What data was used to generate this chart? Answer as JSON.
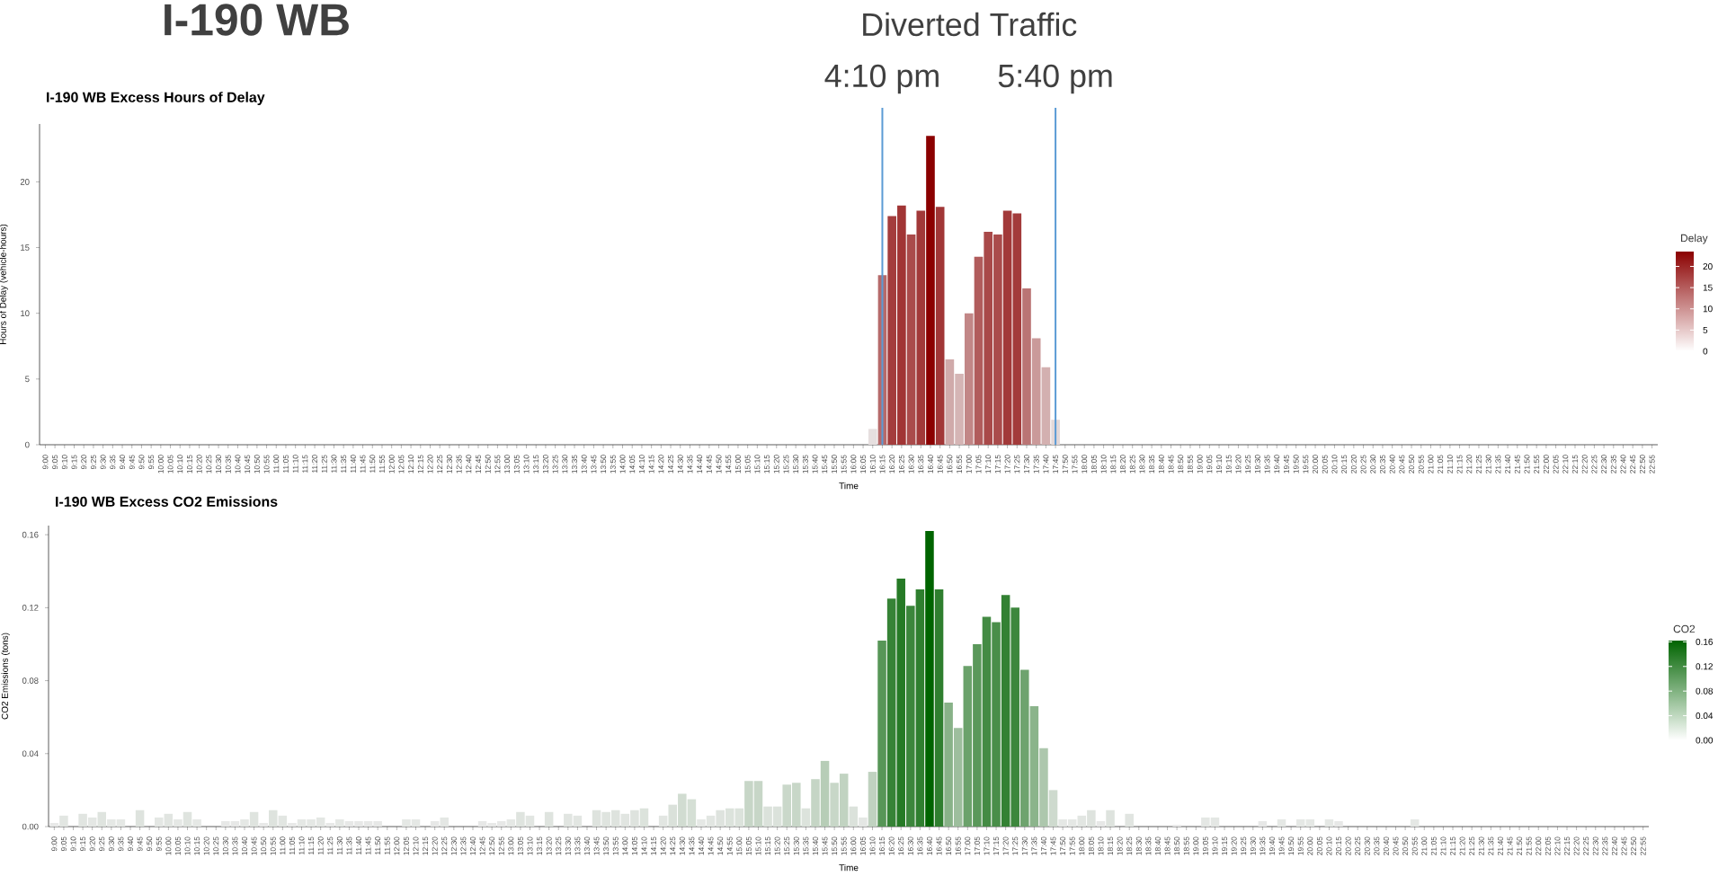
{
  "chart_data": [
    {
      "type": "bar",
      "title": "I-190 WB Excess Hours of Delay",
      "xlabel": "Time",
      "ylabel": "Hours of Delay (vehicle-hours)",
      "annotations": [
        "I-190 WB",
        "Diverted Traffic"
      ],
      "categories": [
        "9:00",
        "9:05",
        "9:10",
        "9:15",
        "9:20",
        "9:25",
        "9:30",
        "9:35",
        "9:40",
        "9:45",
        "9:50",
        "9:55",
        "10:00",
        "10:05",
        "10:10",
        "10:15",
        "10:20",
        "10:25",
        "10:30",
        "10:35",
        "10:40",
        "10:45",
        "10:50",
        "10:55",
        "11:00",
        "11:05",
        "11:10",
        "11:15",
        "11:20",
        "11:25",
        "11:30",
        "11:35",
        "11:40",
        "11:45",
        "11:50",
        "11:55",
        "12:00",
        "12:05",
        "12:10",
        "12:15",
        "12:20",
        "12:25",
        "12:30",
        "12:35",
        "12:40",
        "12:45",
        "12:50",
        "12:55",
        "13:00",
        "13:05",
        "13:10",
        "13:15",
        "13:20",
        "13:25",
        "13:30",
        "13:35",
        "13:40",
        "13:45",
        "13:50",
        "13:55",
        "14:00",
        "14:05",
        "14:10",
        "14:15",
        "14:20",
        "14:25",
        "14:30",
        "14:35",
        "14:40",
        "14:45",
        "14:50",
        "14:55",
        "15:00",
        "15:05",
        "15:10",
        "15:15",
        "15:20",
        "15:25",
        "15:30",
        "15:35",
        "15:40",
        "15:45",
        "15:50",
        "15:55",
        "16:00",
        "16:05",
        "16:10",
        "16:15",
        "16:20",
        "16:25",
        "16:30",
        "16:35",
        "16:40",
        "16:45",
        "16:50",
        "16:55",
        "17:00",
        "17:05",
        "17:10",
        "17:15",
        "17:20",
        "17:25",
        "17:30",
        "17:35",
        "17:40",
        "17:45",
        "17:50",
        "17:55",
        "18:00",
        "18:05",
        "18:10",
        "18:15",
        "18:20",
        "18:25",
        "18:30",
        "18:35",
        "18:40",
        "18:45",
        "18:50",
        "18:55",
        "19:00",
        "19:05",
        "19:10",
        "19:15",
        "19:20",
        "19:25",
        "19:30",
        "19:35",
        "19:40",
        "19:45",
        "19:50",
        "19:55",
        "20:00",
        "20:05",
        "20:10",
        "20:15",
        "20:20",
        "20:25",
        "20:30",
        "20:35",
        "20:40",
        "20:45",
        "20:50",
        "20:55",
        "21:00",
        "21:05",
        "21:10",
        "21:15",
        "21:20",
        "21:25",
        "21:30",
        "21:35",
        "21:40",
        "21:45",
        "21:50",
        "21:55",
        "22:00",
        "22:05",
        "22:10",
        "22:15",
        "22:20",
        "22:25",
        "22:30",
        "22:35",
        "22:40",
        "22:45",
        "22:50",
        "22:55"
      ],
      "values": [
        0,
        0,
        0,
        0,
        0,
        0,
        0,
        0,
        0,
        0,
        0,
        0,
        0,
        0,
        0,
        0,
        0,
        0,
        0,
        0,
        0,
        0,
        0,
        0,
        0,
        0,
        0,
        0,
        0,
        0,
        0,
        0,
        0,
        0,
        0,
        0,
        0,
        0,
        0,
        0,
        0,
        0,
        0,
        0,
        0,
        0,
        0,
        0,
        0,
        0,
        0,
        0,
        0,
        0,
        0,
        0,
        0,
        0,
        0,
        0,
        0,
        0,
        0,
        0,
        0,
        0,
        0,
        0,
        0,
        0,
        0,
        0,
        0,
        0,
        0,
        0,
        0,
        0,
        0,
        0,
        0,
        0,
        0,
        0,
        0,
        0,
        1.2,
        12.9,
        17.4,
        18.2,
        16.0,
        17.8,
        23.5,
        18.1,
        6.5,
        5.4,
        10.0,
        14.3,
        16.2,
        16.0,
        17.8,
        17.6,
        11.9,
        8.1,
        5.9,
        1.9,
        0,
        0,
        0,
        0,
        0,
        0,
        0,
        0,
        0,
        0,
        0,
        0,
        0,
        0,
        0,
        0,
        0,
        0,
        0,
        0,
        0,
        0,
        0,
        0,
        0,
        0,
        0,
        0,
        0,
        0,
        0,
        0,
        0,
        0,
        0,
        0,
        0,
        0,
        0,
        0,
        0,
        0,
        0,
        0,
        0,
        0,
        0,
        0,
        0,
        0,
        0,
        0,
        0,
        0,
        0,
        0,
        0,
        0,
        0,
        0,
        0,
        0
      ],
      "colors": [
        "#ebebeb",
        "#ebebeb",
        "#ebebeb",
        "#ebebeb",
        "#ebebeb",
        "#ebebeb",
        "#ebebeb",
        "#ebebeb",
        "#ebebeb",
        "#ebebeb",
        "#ebebeb",
        "#ebebeb",
        "#ebebeb",
        "#ebebeb",
        "#ebebeb",
        "#ebebeb",
        "#ebebeb",
        "#ebebeb",
        "#ebebeb",
        "#ebebeb",
        "#ebebeb",
        "#ebebeb",
        "#ebebeb",
        "#ebebeb",
        "#ebebeb",
        "#ebebeb",
        "#ebebeb",
        "#ebebeb",
        "#ebebeb",
        "#ebebeb",
        "#ebebeb",
        "#ebebeb",
        "#ebebeb",
        "#ebebeb",
        "#ebebeb",
        "#ebebeb",
        "#ebebeb",
        "#ebebeb",
        "#ebebeb",
        "#ebebeb",
        "#ebebeb",
        "#ebebeb",
        "#ebebeb",
        "#ebebeb",
        "#ebebeb",
        "#ebebeb",
        "#ebebeb",
        "#ebebeb",
        "#ebebeb",
        "#ebebeb",
        "#ebebeb",
        "#ebebeb",
        "#ebebeb",
        "#ebebeb",
        "#ebebeb",
        "#ebebeb",
        "#ebebeb",
        "#ebebeb",
        "#ebebeb",
        "#ebebeb",
        "#ebebeb",
        "#ebebeb",
        "#ebebeb",
        "#ebebeb",
        "#ebebeb",
        "#ebebeb",
        "#ebebeb",
        "#ebebeb",
        "#ebebeb",
        "#ebebeb",
        "#ebebeb",
        "#ebebeb",
        "#ebebeb",
        "#ebebeb",
        "#ebebeb",
        "#ebebeb",
        "#ebebeb",
        "#ebebeb",
        "#ebebeb",
        "#ebebeb",
        "#ebebeb",
        "#ebebeb",
        "#ebebeb",
        "#ebebeb",
        "#ebebeb",
        "#ebebeb",
        "#e6dfdf",
        "#b66a6a",
        "#a43d3d",
        "#a13535",
        "#aa4b4b",
        "#a23939",
        "#8b0000",
        "#a13636",
        "#d0aaaa",
        "#d5b5b5",
        "#c28787",
        "#b15c5c",
        "#a94949",
        "#aa4b4b",
        "#a23939",
        "#a33b3b",
        "#ba7474",
        "#ca9a9a",
        "#d3b0b0",
        "#e3d8d8",
        "#ebebeb",
        "#ebebeb",
        "#ebebeb",
        "#ebebeb",
        "#ebebeb",
        "#ebebeb",
        "#ebebeb",
        "#ebebeb",
        "#ebebeb",
        "#ebebeb",
        "#ebebeb",
        "#ebebeb",
        "#ebebeb",
        "#ebebeb",
        "#ebebeb",
        "#ebebeb",
        "#ebebeb",
        "#ebebeb",
        "#ebebeb",
        "#ebebeb",
        "#ebebeb",
        "#ebebeb",
        "#ebebeb",
        "#ebebeb",
        "#ebebeb",
        "#ebebeb",
        "#ebebeb",
        "#ebebeb",
        "#ebebeb",
        "#ebebeb",
        "#ebebeb",
        "#ebebeb",
        "#ebebeb",
        "#ebebeb",
        "#ebebeb",
        "#ebebeb",
        "#ebebeb",
        "#ebebeb",
        "#ebebeb",
        "#ebebeb",
        "#ebebeb",
        "#ebebeb",
        "#ebebeb",
        "#ebebeb",
        "#ebebeb",
        "#ebebeb",
        "#ebebeb",
        "#ebebeb",
        "#ebebeb",
        "#ebebeb",
        "#ebebeb",
        "#ebebeb",
        "#ebebeb",
        "#ebebeb",
        "#ebebeb",
        "#ebebeb",
        "#ebebeb",
        "#ebebeb",
        "#ebebeb",
        "#ebebeb",
        "#ebebeb",
        "#ebebeb"
      ],
      "ylim": [
        0,
        24.4
      ],
      "yticks": [
        0,
        5,
        10,
        15,
        20
      ],
      "clim": [
        0,
        23.5
      ],
      "cticks": [
        0,
        5,
        10,
        15,
        20
      ],
      "clabel": "Delay",
      "ref_lines": [
        {
          "axis": "x",
          "value": "16:15",
          "label": "4:10 pm",
          "color": "#5b9bd5"
        },
        {
          "axis": "x",
          "value": "17:45",
          "label": "5:40 pm",
          "color": "#5b9bd5"
        }
      ]
    },
    {
      "type": "bar",
      "title": "I-190 WB Excess CO2 Emissions",
      "xlabel": "Time",
      "ylabel": "CO2 Emissions (tons)",
      "categories": [
        "9:00",
        "9:05",
        "9:10",
        "9:15",
        "9:20",
        "9:25",
        "9:30",
        "9:35",
        "9:40",
        "9:45",
        "9:50",
        "9:55",
        "10:00",
        "10:05",
        "10:10",
        "10:15",
        "10:20",
        "10:25",
        "10:30",
        "10:35",
        "10:40",
        "10:45",
        "10:50",
        "10:55",
        "11:00",
        "11:05",
        "11:10",
        "11:15",
        "11:20",
        "11:25",
        "11:30",
        "11:35",
        "11:40",
        "11:45",
        "11:50",
        "11:55",
        "12:00",
        "12:05",
        "12:10",
        "12:15",
        "12:20",
        "12:25",
        "12:30",
        "12:35",
        "12:40",
        "12:45",
        "12:50",
        "12:55",
        "13:00",
        "13:05",
        "13:10",
        "13:15",
        "13:20",
        "13:25",
        "13:30",
        "13:35",
        "13:40",
        "13:45",
        "13:50",
        "13:55",
        "14:00",
        "14:05",
        "14:10",
        "14:15",
        "14:20",
        "14:25",
        "14:30",
        "14:35",
        "14:40",
        "14:45",
        "14:50",
        "14:55",
        "15:00",
        "15:05",
        "15:10",
        "15:15",
        "15:20",
        "15:25",
        "15:30",
        "15:35",
        "15:40",
        "15:45",
        "15:50",
        "15:55",
        "16:00",
        "16:05",
        "16:10",
        "16:15",
        "16:20",
        "16:25",
        "16:30",
        "16:35",
        "16:40",
        "16:45",
        "16:50",
        "16:55",
        "17:00",
        "17:05",
        "17:10",
        "17:15",
        "17:20",
        "17:25",
        "17:30",
        "17:35",
        "17:40",
        "17:45",
        "17:50",
        "17:55",
        "18:00",
        "18:05",
        "18:10",
        "18:15",
        "18:20",
        "18:25",
        "18:30",
        "18:35",
        "18:40",
        "18:45",
        "18:50",
        "18:55",
        "19:00",
        "19:05",
        "19:10",
        "19:15",
        "19:20",
        "19:25",
        "19:30",
        "19:35",
        "19:40",
        "19:45",
        "19:50",
        "19:55",
        "20:00",
        "20:05",
        "20:10",
        "20:15",
        "20:20",
        "20:25",
        "20:30",
        "20:35",
        "20:40",
        "20:45",
        "20:50",
        "20:55",
        "21:00",
        "21:05",
        "21:10",
        "21:15",
        "21:20",
        "21:25",
        "21:30",
        "21:35",
        "21:40",
        "21:45",
        "21:50",
        "21:55",
        "22:00",
        "22:05",
        "22:10",
        "22:15",
        "22:20",
        "22:25",
        "22:30",
        "22:35",
        "22:40",
        "22:45",
        "22:50",
        "22:55"
      ],
      "values": [
        0.002,
        0.006,
        0,
        0.007,
        0.005,
        0.008,
        0.004,
        0.004,
        0,
        0.009,
        0,
        0.005,
        0.007,
        0.004,
        0.008,
        0.004,
        0,
        0,
        0.003,
        0.003,
        0.004,
        0.008,
        0.002,
        0.009,
        0.006,
        0.002,
        0.004,
        0.004,
        0.005,
        0.002,
        0.004,
        0.003,
        0.003,
        0.003,
        0.003,
        0,
        0,
        0.004,
        0.004,
        0,
        0.003,
        0.005,
        0,
        0,
        0,
        0.003,
        0.002,
        0.003,
        0.004,
        0.008,
        0.006,
        0,
        0.008,
        0,
        0.007,
        0.006,
        0,
        0.009,
        0.008,
        0.009,
        0.007,
        0.009,
        0.01,
        0,
        0.006,
        0.012,
        0.018,
        0.015,
        0.004,
        0.006,
        0.009,
        0.01,
        0.01,
        0.025,
        0.025,
        0.011,
        0.011,
        0.023,
        0.024,
        0.01,
        0.026,
        0.036,
        0.024,
        0.029,
        0.011,
        0.005,
        0.03,
        0.102,
        0.125,
        0.136,
        0.121,
        0.13,
        0.162,
        0.13,
        0.068,
        0.054,
        0.088,
        0.1,
        0.115,
        0.112,
        0.127,
        0.12,
        0.086,
        0.066,
        0.043,
        0.02,
        0.004,
        0.004,
        0.006,
        0.009,
        0.003,
        0.009,
        0,
        0.007,
        0,
        0,
        0,
        0,
        0.001,
        0,
        0,
        0.005,
        0.005,
        0,
        0,
        0,
        0,
        0.003,
        0,
        0.004,
        0,
        0.004,
        0.004,
        0,
        0.004,
        0.003,
        0,
        0,
        0,
        0,
        0,
        0,
        0,
        0.004,
        0,
        0,
        0,
        0,
        0,
        0,
        0,
        0,
        0,
        0,
        0,
        0,
        0,
        0,
        0,
        0,
        0,
        0,
        0,
        0,
        0,
        0,
        0,
        0
      ],
      "colors": [
        "#e8e9e8",
        "#e2e6e2",
        "#ebebeb",
        "#e1e5e1",
        "#e4e7e4",
        "#dfe4df",
        "#e5e8e5",
        "#e5e8e5",
        "#ebebeb",
        "#dee3de",
        "#ebebeb",
        "#e4e7e4",
        "#e1e5e1",
        "#e5e8e5",
        "#dfe4df",
        "#e5e8e5",
        "#ebebeb",
        "#ebebeb",
        "#e7e8e7",
        "#e7e8e7",
        "#e5e8e5",
        "#dfe4df",
        "#e8e9e8",
        "#dee3de",
        "#e2e6e2",
        "#e8e9e8",
        "#e5e8e5",
        "#e5e8e5",
        "#e4e7e4",
        "#e8e9e8",
        "#e5e8e5",
        "#e7e8e7",
        "#e7e8e7",
        "#e7e8e7",
        "#e7e8e7",
        "#ebebeb",
        "#ebebeb",
        "#e5e8e5",
        "#e5e8e5",
        "#ebebeb",
        "#e7e8e7",
        "#e4e7e4",
        "#ebebeb",
        "#ebebeb",
        "#ebebeb",
        "#e7e8e7",
        "#e8e9e8",
        "#e7e8e7",
        "#e5e8e5",
        "#dfe4df",
        "#e2e6e2",
        "#ebebeb",
        "#dfe4df",
        "#ebebeb",
        "#e1e5e1",
        "#e2e6e2",
        "#ebebeb",
        "#dee3de",
        "#dfe4df",
        "#dee3de",
        "#e1e5e1",
        "#dee3de",
        "#dce3dc",
        "#ebebeb",
        "#e2e6e2",
        "#dae1da",
        "#d1dcd1",
        "#d5dfd5",
        "#e5e8e5",
        "#e2e6e2",
        "#dee3de",
        "#dce3dc",
        "#dce3dc",
        "#c7d6c7",
        "#c7d6c7",
        "#dbe2db",
        "#dbe2db",
        "#cad8ca",
        "#c8d7c8",
        "#dce3dc",
        "#c5d5c5",
        "#b7cdb7",
        "#c8d7c8",
        "#c1d3c1",
        "#dbe2db",
        "#e4e7e4",
        "#c0d2c0",
        "#579657",
        "#368336",
        "#267a26",
        "#3c863c",
        "#2f7f2f",
        "#006400",
        "#2f7f2f",
        "#88b288",
        "#9dbe9d",
        "#6ba26b",
        "#5a985a",
        "#448b44",
        "#498e49",
        "#338133",
        "#3d873d",
        "#6ea36e",
        "#8bb48b",
        "#adc7ad",
        "#cedace",
        "#e5e8e5",
        "#e5e8e5",
        "#e2e6e2",
        "#dee3de",
        "#e7e8e7",
        "#dee3de",
        "#ebebeb",
        "#e1e5e1",
        "#ebebeb",
        "#ebebeb",
        "#ebebeb",
        "#ebebeb",
        "#eaeaea",
        "#ebebeb",
        "#ebebeb",
        "#e4e7e4",
        "#e4e7e4",
        "#ebebeb",
        "#ebebeb",
        "#ebebeb",
        "#ebebeb",
        "#e7e8e7",
        "#ebebeb",
        "#e5e8e5",
        "#ebebeb",
        "#e5e8e5",
        "#e5e8e5",
        "#ebebeb",
        "#e5e8e5",
        "#e7e8e7",
        "#ebebeb",
        "#ebebeb",
        "#ebebeb",
        "#ebebeb",
        "#ebebeb",
        "#ebebeb",
        "#ebebeb",
        "#e5e8e5",
        "#ebebeb",
        "#ebebeb",
        "#ebebeb",
        "#ebebeb",
        "#ebebeb",
        "#ebebeb",
        "#ebebeb",
        "#ebebeb",
        "#ebebeb",
        "#ebebeb",
        "#ebebeb",
        "#ebebeb",
        "#ebebeb",
        "#ebebeb",
        "#ebebeb",
        "#ebebeb",
        "#ebebeb",
        "#ebebeb",
        "#ebebeb",
        "#ebebeb",
        "#ebebeb",
        "#ebebeb",
        "#ebebeb",
        "#ebebeb"
      ],
      "ylim": [
        0,
        0.165
      ],
      "yticks": [
        {
          "value": 0,
          "label": "0.00"
        },
        0.04,
        0.08,
        0.12,
        0.16
      ],
      "clim": [
        0,
        0.162
      ],
      "cticks": [
        {
          "value": 0,
          "label": "0.00"
        },
        0.04,
        0.08,
        0.12,
        0.16
      ],
      "clabel": "CO2"
    }
  ]
}
